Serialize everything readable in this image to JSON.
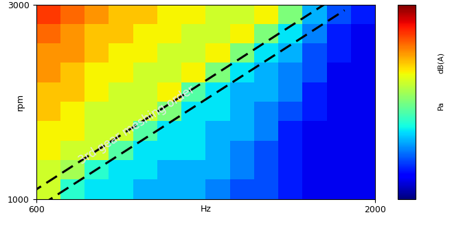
{
  "chart_data": {
    "type": "heatmap",
    "xlabel": "Hz",
    "ylabel": "rpm",
    "xlim": [
      600,
      2000
    ],
    "ylim": [
      1000,
      3000
    ],
    "xticks": [
      600,
      2000
    ],
    "yticks": [
      1000,
      3000
    ],
    "x": [
      650,
      750,
      850,
      950,
      1050,
      1150,
      1250,
      1350,
      1450,
      1550,
      1650,
      1750,
      1850,
      1950
    ],
    "y": [
      1100,
      1300,
      1500,
      1700,
      1900,
      2100,
      2300,
      2500,
      2700,
      2900
    ],
    "cells": [
      [
        6,
        4,
        3.5,
        3.5,
        3,
        3,
        3,
        2.5,
        2,
        2,
        1.5,
        1,
        1,
        1
      ],
      [
        6,
        5.5,
        4,
        3.5,
        3.5,
        3,
        3,
        3,
        2.5,
        2,
        1.5,
        1,
        1,
        1
      ],
      [
        6.5,
        6,
        6,
        4.5,
        3.5,
        3.5,
        3.5,
        3,
        2.5,
        2,
        1.5,
        1,
        1,
        1
      ],
      [
        6.5,
        6.5,
        6,
        6,
        4.5,
        3.5,
        3.5,
        3,
        3,
        2.5,
        1.5,
        1,
        1,
        1
      ],
      [
        7,
        6.5,
        6,
        6,
        6,
        5,
        3.5,
        3.5,
        3,
        2.5,
        2,
        1.5,
        1,
        1
      ],
      [
        7,
        7,
        6.5,
        6,
        6,
        6.5,
        4.5,
        3.5,
        3,
        3,
        2.5,
        1.5,
        1,
        1
      ],
      [
        7.5,
        7,
        6.5,
        6.5,
        6,
        6,
        6.5,
        5,
        3.5,
        3,
        2.5,
        2,
        1,
        1
      ],
      [
        7.5,
        7.5,
        7,
        6.5,
        6.5,
        6,
        6,
        6.5,
        5,
        3.5,
        3,
        2,
        1.5,
        1
      ],
      [
        8,
        7.5,
        7,
        7,
        6.5,
        6.5,
        6,
        6,
        6.5,
        5,
        3.5,
        2.5,
        1.5,
        1
      ],
      [
        8.5,
        8,
        7.5,
        7,
        7,
        6.5,
        6.5,
        6,
        6,
        6.5,
        5,
        3,
        2,
        1.5
      ]
    ],
    "colorbar": {
      "range": [
        0,
        10
      ],
      "labels": [
        "dB(A)",
        "Pa"
      ]
    },
    "annotation": {
      "text": "3rd gear meshing order",
      "x": [
        600,
        1850
      ],
      "y": [
        1000,
        3000
      ]
    }
  }
}
